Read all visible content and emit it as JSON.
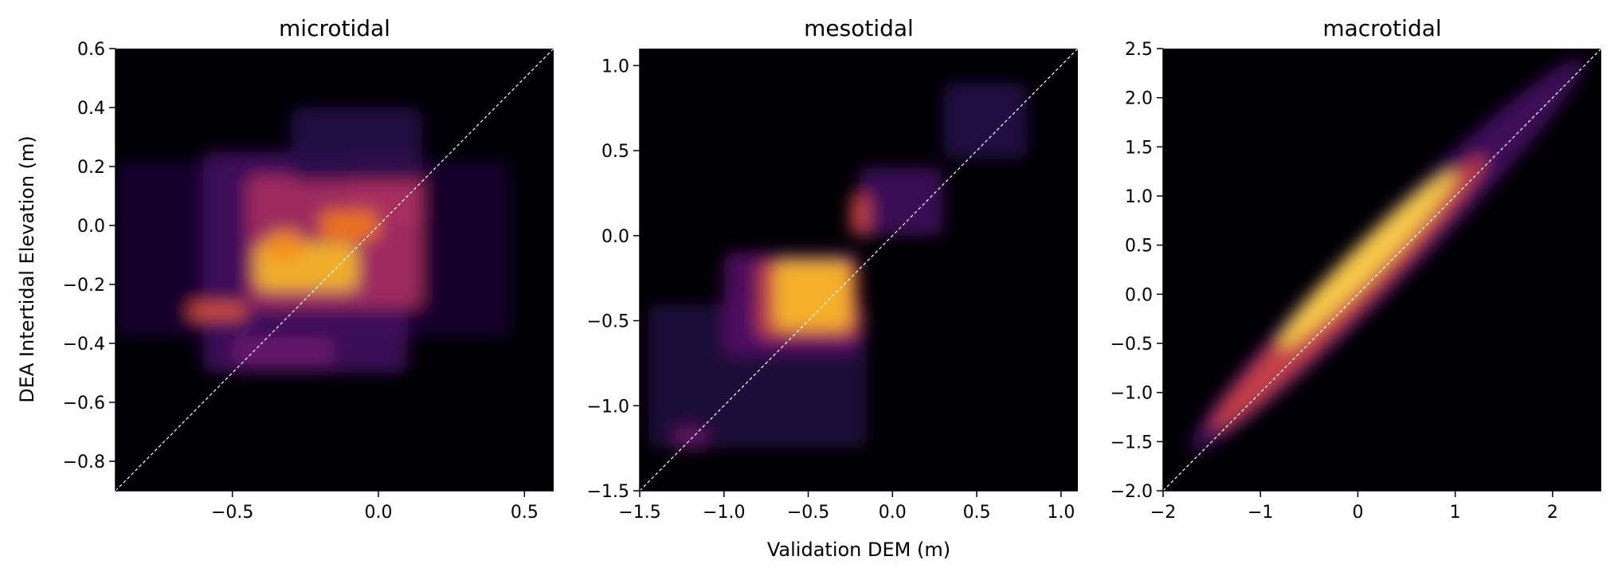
{
  "figure": {
    "xlabel": "Validation DEM (m)",
    "ylabel": "DEA Intertidal Elevation (m)",
    "colormap": "inferno",
    "reference_line_color": "#ffffff"
  },
  "chart_data": [
    {
      "type": "heatmap",
      "title": "microtidal",
      "xlim": [
        -0.9,
        0.6
      ],
      "ylim": [
        -0.9,
        0.6
      ],
      "xticks": [
        -0.5,
        0.0,
        0.5
      ],
      "xtick_labels": [
        "−0.5",
        "0.0",
        "0.5"
      ],
      "yticks": [
        -0.8,
        -0.6,
        -0.4,
        -0.2,
        0.0,
        0.2,
        0.4,
        0.6
      ],
      "ytick_labels": [
        "−0.8",
        "−0.6",
        "−0.4",
        "−0.2",
        "0.0",
        "0.2",
        "0.4",
        "0.6"
      ],
      "reference_line": "y = x",
      "density_regions": [
        {
          "x": -0.9,
          "y": -0.38,
          "w": 1.35,
          "h": 0.6,
          "intensity": 0.08
        },
        {
          "x": -0.6,
          "y": -0.5,
          "w": 0.7,
          "h": 0.75,
          "intensity": 0.2
        },
        {
          "x": -0.45,
          "y": -0.28,
          "w": 0.6,
          "h": 0.45,
          "intensity": 0.45
        },
        {
          "x": -0.42,
          "y": -0.22,
          "w": 0.35,
          "h": 0.16,
          "intensity": 0.85
        },
        {
          "x": -0.38,
          "y": -0.12,
          "w": 0.12,
          "h": 0.1,
          "intensity": 0.75
        },
        {
          "x": -0.1,
          "y": 0.0,
          "w": 0.25,
          "h": 0.25,
          "intensity": 0.45
        },
        {
          "x": -0.2,
          "y": -0.05,
          "w": 0.2,
          "h": 0.1,
          "intensity": 0.7
        },
        {
          "x": -0.65,
          "y": -0.32,
          "w": 0.2,
          "h": 0.06,
          "intensity": 0.6
        },
        {
          "x": -0.5,
          "y": -0.48,
          "w": 0.35,
          "h": 0.1,
          "intensity": 0.3
        },
        {
          "x": -0.3,
          "y": 0.15,
          "w": 0.45,
          "h": 0.25,
          "intensity": 0.12
        }
      ]
    },
    {
      "type": "heatmap",
      "title": "mesotidal",
      "xlim": [
        -1.5,
        1.1
      ],
      "ylim": [
        -1.5,
        1.1
      ],
      "xticks": [
        -1.5,
        -1.0,
        -0.5,
        0.0,
        0.5,
        1.0
      ],
      "xtick_labels": [
        "−1.5",
        "−1.0",
        "−0.5",
        "0.0",
        "0.5",
        "1.0"
      ],
      "yticks": [
        -1.5,
        -1.0,
        -0.5,
        0.0,
        0.5,
        1.0
      ],
      "ytick_labels": [
        "−1.5",
        "−1.0",
        "−0.5",
        "0.0",
        "0.5",
        "1.0"
      ],
      "reference_line": "y = x",
      "density_regions": [
        {
          "x": -1.45,
          "y": -1.25,
          "w": 1.3,
          "h": 0.85,
          "intensity": 0.1
        },
        {
          "x": -1.0,
          "y": -0.7,
          "w": 0.8,
          "h": 0.6,
          "intensity": 0.25
        },
        {
          "x": -0.2,
          "y": 0.0,
          "w": 0.5,
          "h": 0.4,
          "intensity": 0.2
        },
        {
          "x": 0.3,
          "y": 0.45,
          "w": 0.5,
          "h": 0.45,
          "intensity": 0.12
        },
        {
          "x": -0.8,
          "y": -0.6,
          "w": 0.6,
          "h": 0.45,
          "intensity": 0.55
        },
        {
          "x": -0.7,
          "y": -0.55,
          "w": 0.45,
          "h": 0.4,
          "intensity": 0.85
        },
        {
          "x": -0.25,
          "y": 0.0,
          "w": 0.12,
          "h": 0.25,
          "intensity": 0.55
        },
        {
          "x": -1.3,
          "y": -1.25,
          "w": 0.2,
          "h": 0.12,
          "intensity": 0.3
        }
      ]
    },
    {
      "type": "heatmap",
      "title": "macrotidal",
      "xlim": [
        -2.0,
        2.5
      ],
      "ylim": [
        -2.0,
        2.5
      ],
      "xticks": [
        -2,
        -1,
        0,
        1,
        2
      ],
      "xtick_labels": [
        "−2",
        "−1",
        "0",
        "1",
        "2"
      ],
      "yticks": [
        -2.0,
        -1.5,
        -1.0,
        -0.5,
        0.0,
        0.5,
        1.0,
        1.5,
        2.0,
        2.5
      ],
      "ytick_labels": [
        "−2.0",
        "−1.5",
        "−1.0",
        "−0.5",
        "0.0",
        "0.5",
        "1.0",
        "1.5",
        "2.0",
        "2.5"
      ],
      "reference_line": "y = x",
      "density_regions": [
        {
          "x": -1.7,
          "y": -1.6,
          "w": 4.0,
          "h": 0.6,
          "intensity": 0.2,
          "diagonal": true
        },
        {
          "x": -1.5,
          "y": -1.4,
          "w": 2.8,
          "h": 0.4,
          "intensity": 0.55,
          "diagonal": true
        },
        {
          "x": -0.8,
          "y": -0.55,
          "w": 1.8,
          "h": 0.3,
          "intensity": 0.9,
          "diagonal": true
        }
      ]
    }
  ]
}
